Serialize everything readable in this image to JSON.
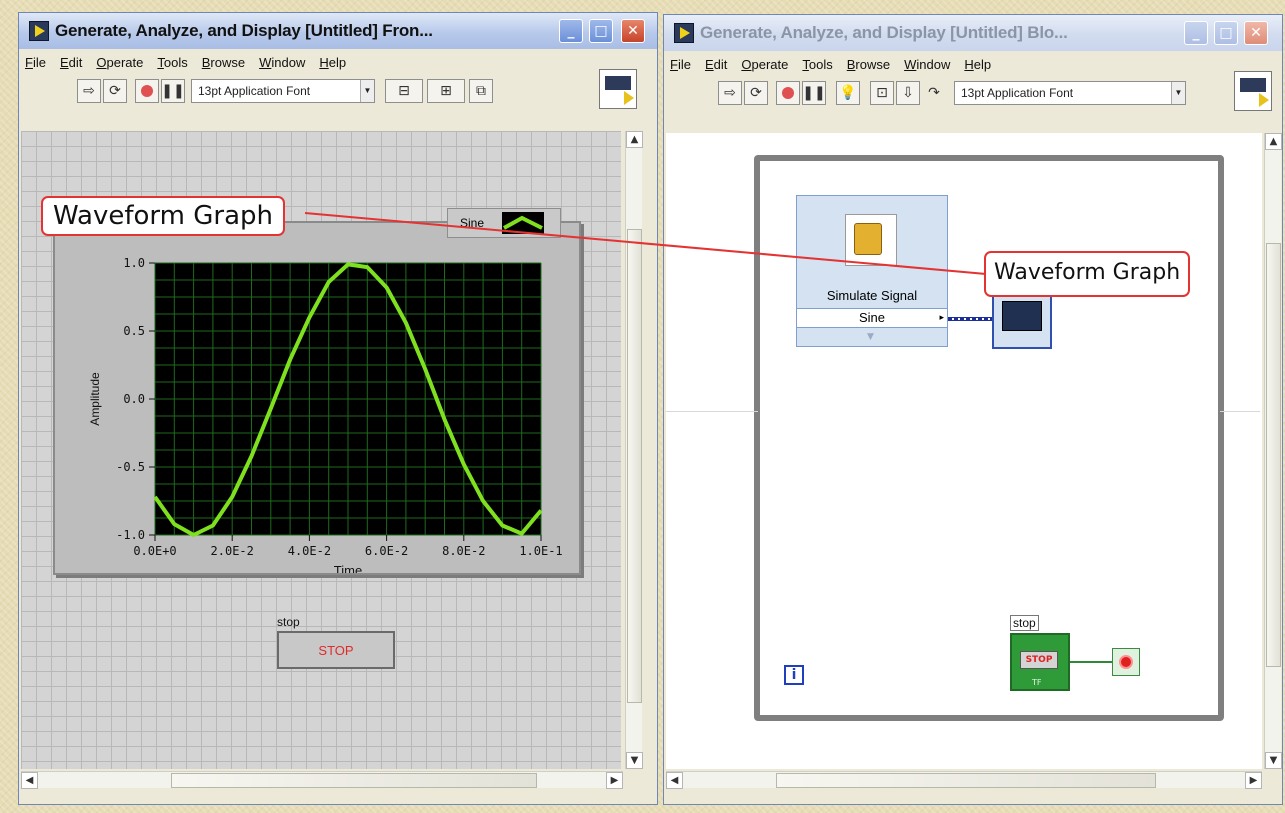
{
  "front_panel_window": {
    "title": "Generate, Analyze, and Display [Untitled] Fron...",
    "controls": {
      "minimize": "_",
      "maximize": "□",
      "close": "✕"
    },
    "menu": [
      "File",
      "Edit",
      "Operate",
      "Tools",
      "Browse",
      "Window",
      "Help"
    ],
    "toolbar": {
      "run_icon": "run-arrow-icon",
      "run_continuous_icon": "run-continuously-icon",
      "abort_icon": "abort-icon",
      "pause_icon": "pause-icon",
      "font": "13pt Application Font"
    },
    "callout": "Waveform Graph",
    "graph": {
      "legend_label": "Sine",
      "plot_color": "#7fe020",
      "background_color": "#000000",
      "grid_color": "#1e6a1e"
    },
    "stop": {
      "label": "stop",
      "button_text": "STOP"
    }
  },
  "block_diagram_window": {
    "title": "Generate, Analyze, and Display [Untitled] Blo...",
    "controls": {
      "minimize": "_",
      "maximize": "□",
      "close": "✕"
    },
    "menu": [
      "File",
      "Edit",
      "Operate",
      "Tools",
      "Browse",
      "Window",
      "Help"
    ],
    "toolbar": {
      "run_icon": "run-arrow-icon",
      "run_continuous_icon": "run-continuously-icon",
      "abort_icon": "abort-icon",
      "pause_icon": "pause-icon",
      "highlight_icon": "highlight-execution-icon",
      "font": "13pt Application Font"
    },
    "simulate_signal": {
      "title": "Simulate Signal",
      "output": "Sine"
    },
    "callout": "Waveform Graph",
    "stop_terminal": {
      "label": "stop",
      "text": "STOP",
      "sub": "TF"
    },
    "iteration_terminal": "i"
  },
  "chart_data": {
    "type": "line",
    "title": "",
    "xlabel": "Time",
    "ylabel": "Amplitude",
    "xlim": [
      0,
      0.1
    ],
    "ylim": [
      -1.0,
      1.0
    ],
    "x_tick_labels": [
      "0.0E+0",
      "2.0E-2",
      "4.0E-2",
      "6.0E-2",
      "8.0E-2",
      "1.0E-1"
    ],
    "y_tick_labels": [
      "1.0",
      "0.5",
      "0.0",
      "-0.5",
      "-1.0"
    ],
    "grid": true,
    "legend": "top-right",
    "series": [
      {
        "name": "Sine",
        "x": [
          0,
          0.005,
          0.01,
          0.015,
          0.02,
          0.025,
          0.03,
          0.035,
          0.04,
          0.045,
          0.05,
          0.055,
          0.06,
          0.065,
          0.07,
          0.075,
          0.08,
          0.085,
          0.09,
          0.095,
          0.1
        ],
        "y": [
          -0.72,
          -0.92,
          -1.0,
          -0.93,
          -0.72,
          -0.42,
          -0.07,
          0.29,
          0.6,
          0.86,
          0.99,
          0.97,
          0.82,
          0.56,
          0.22,
          -0.15,
          -0.48,
          -0.75,
          -0.93,
          -0.99,
          -0.82
        ]
      }
    ]
  }
}
